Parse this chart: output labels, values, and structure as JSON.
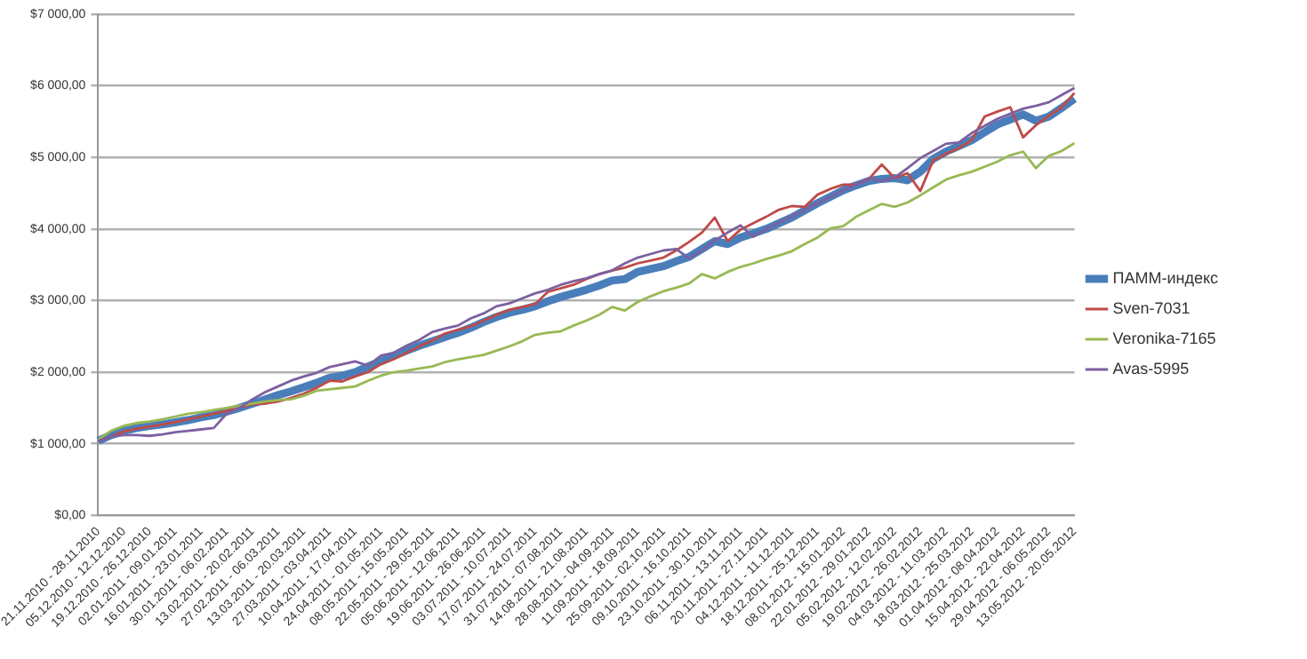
{
  "chart_data": {
    "type": "line",
    "categories": [
      "21.11.2010 - 28.11.2010",
      null,
      "05.12.2010 - 12.12.2010",
      null,
      "19.12.2010 - 26.12.2010",
      null,
      "02.01.2011 - 09.01.2011",
      null,
      "16.01.2011 - 23.01.2011",
      null,
      "30.01.2011 - 06.02.2011",
      null,
      "13.02.2011 - 20.02.2011",
      null,
      "27.02.2011 - 06.03.2011",
      null,
      "13.03.2011 - 20.03.2011",
      null,
      "27.03.2011 - 03.04.2011",
      null,
      "10.04.2011 - 17.04.2011",
      null,
      "24.04.2011 - 01.05.2011",
      null,
      "08.05.2011 - 15.05.2011",
      null,
      "22.05.2011 - 29.05.2011",
      null,
      "05.06.2011 - 12.06.2011",
      null,
      "19.06.2011 - 26.06.2011",
      null,
      "03.07.2011 - 10.07.2011",
      null,
      "17.07.2011 - 24.07.2011",
      null,
      "31.07.2011 - 07.08.2011",
      null,
      "14.08.2011 - 21.08.2011",
      null,
      "28.08.2011 - 04.09.2011",
      null,
      "11.09.2011 - 18.09.2011",
      null,
      "25.09.2011 - 02.10.2011",
      null,
      "09.10.2011 - 16.10.2011",
      null,
      "23.10.2011 - 30.10.2011",
      null,
      "06.11.2011 - 13.11.2011",
      null,
      "20.11.2011 - 27.11.2011",
      null,
      "04.12.2011 - 11.12.2011",
      null,
      "18.12.2011 - 25.12.2011",
      null,
      "08.01.2012 - 15.01.2012",
      null,
      "22.01.2012 - 29.01.2012",
      null,
      "05.02.2012 - 12.02.2012",
      null,
      "19.02.2012 - 26.02.2012",
      null,
      "04.03.2012 - 11.03.2012",
      null,
      "18.03.2012 - 25.03.2012",
      null,
      "01.04.2012 - 08.04.2012",
      null,
      "15.04.2012 - 22.04.2012",
      null,
      "29.04.2012 - 06.05.2012",
      null,
      "13.05.2012 - 20.05.2012"
    ],
    "series": [
      {
        "name": "ПАММ-индекс",
        "color": "#4a7ebb",
        "values": [
          1040,
          1120,
          1180,
          1220,
          1250,
          1270,
          1300,
          1330,
          1370,
          1400,
          1450,
          1500,
          1560,
          1620,
          1680,
          1730,
          1790,
          1850,
          1920,
          1950,
          2000,
          2080,
          2150,
          2230,
          2300,
          2370,
          2430,
          2490,
          2550,
          2620,
          2700,
          2770,
          2830,
          2870,
          2920,
          2990,
          3050,
          3100,
          3150,
          3210,
          3280,
          3300,
          3400,
          3440,
          3480,
          3550,
          3610,
          3720,
          3830,
          3790,
          3880,
          3940,
          4000,
          4080,
          4160,
          4260,
          4360,
          4450,
          4540,
          4610,
          4670,
          4700,
          4710,
          4680,
          4800,
          4980,
          5080,
          5160,
          5240,
          5350,
          5460,
          5530,
          5600,
          5510,
          5570,
          5690,
          5820
        ]
      },
      {
        "name": "Sven-7031",
        "color": "#be4b48",
        "values": [
          1040,
          1100,
          1170,
          1210,
          1240,
          1270,
          1300,
          1340,
          1380,
          1420,
          1460,
          1510,
          1550,
          1560,
          1590,
          1640,
          1700,
          1780,
          1880,
          1870,
          1940,
          2000,
          2110,
          2180,
          2270,
          2360,
          2440,
          2540,
          2590,
          2640,
          2720,
          2800,
          2870,
          2910,
          2950,
          3120,
          3170,
          3220,
          3300,
          3370,
          3420,
          3460,
          3520,
          3560,
          3600,
          3700,
          3820,
          3950,
          4160,
          3830,
          3990,
          4080,
          4170,
          4270,
          4320,
          4310,
          4480,
          4560,
          4620,
          4620,
          4700,
          4900,
          4710,
          4780,
          4530,
          4960,
          5050,
          5130,
          5240,
          5570,
          5640,
          5700,
          5280,
          5450,
          5580,
          5700,
          5900
        ]
      },
      {
        "name": "Veronika-7165",
        "color": "#98b954",
        "values": [
          1060,
          1180,
          1250,
          1290,
          1310,
          1340,
          1380,
          1420,
          1440,
          1470,
          1500,
          1530,
          1560,
          1590,
          1610,
          1620,
          1670,
          1740,
          1760,
          1780,
          1800,
          1880,
          1950,
          2000,
          2020,
          2050,
          2080,
          2140,
          2180,
          2210,
          2240,
          2300,
          2360,
          2430,
          2520,
          2550,
          2570,
          2650,
          2720,
          2800,
          2910,
          2860,
          2980,
          3060,
          3130,
          3180,
          3240,
          3370,
          3310,
          3400,
          3470,
          3520,
          3580,
          3630,
          3690,
          3790,
          3880,
          4010,
          4040,
          4170,
          4260,
          4350,
          4310,
          4370,
          4470,
          4580,
          4690,
          4750,
          4800,
          4870,
          4940,
          5030,
          5080,
          4850,
          5020,
          5090,
          5200
        ]
      },
      {
        "name": "Avas-5995",
        "color": "#7d60a0",
        "values": [
          1040,
          1100,
          1120,
          1120,
          1110,
          1130,
          1160,
          1180,
          1200,
          1220,
          1420,
          1500,
          1620,
          1720,
          1800,
          1880,
          1940,
          1990,
          2070,
          2110,
          2150,
          2090,
          2230,
          2270,
          2370,
          2450,
          2560,
          2610,
          2650,
          2750,
          2820,
          2920,
          2960,
          3030,
          3100,
          3150,
          3220,
          3270,
          3310,
          3370,
          3420,
          3520,
          3600,
          3650,
          3700,
          3720,
          3590,
          3700,
          3840,
          3950,
          4050,
          3890,
          4000,
          4090,
          4180,
          4270,
          4360,
          4450,
          4540,
          4620,
          4710,
          4670,
          4720,
          4850,
          4990,
          5090,
          5190,
          5210,
          5340,
          5440,
          5540,
          5610,
          5680,
          5720,
          5770,
          5870,
          5970
        ]
      }
    ],
    "ylim": [
      0,
      7000
    ],
    "yticks": [
      {
        "value": 0,
        "label": "$0,00"
      },
      {
        "value": 1000,
        "label": "$1 000,00"
      },
      {
        "value": 2000,
        "label": "$2 000,00"
      },
      {
        "value": 3000,
        "label": "$3 000,00"
      },
      {
        "value": 4000,
        "label": "$4 000,00"
      },
      {
        "value": 5000,
        "label": "$5 000,00"
      },
      {
        "value": 6000,
        "label": "$6 000,00"
      },
      {
        "value": 7000,
        "label": "$7 000,00"
      }
    ],
    "grid": "y",
    "legend": "right",
    "marker": "none",
    "line_style": "solid"
  }
}
